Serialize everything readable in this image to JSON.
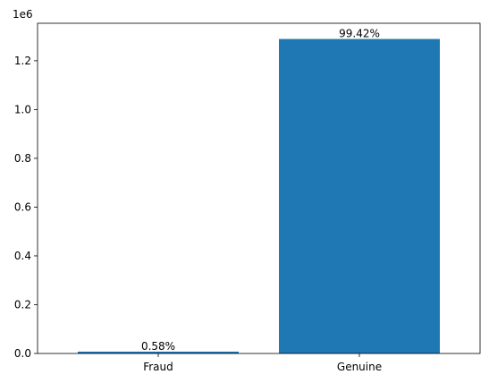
{
  "chart_data": {
    "type": "bar",
    "categories": [
      "Fraud",
      "Genuine"
    ],
    "values": [
      7500,
      1289169
    ],
    "data_labels": [
      "0.58%",
      "99.42%"
    ],
    "title": "",
    "xlabel": "",
    "ylabel": "",
    "y_scale_label": "1e6",
    "y_scale_factor": 1000000,
    "y_ticks": [
      0.0,
      0.2,
      0.4,
      0.6,
      0.8,
      1.0,
      1.2
    ],
    "y_tick_labels": [
      "0.0",
      "0.2",
      "0.4",
      "0.6",
      "0.8",
      "1.0",
      "1.2"
    ],
    "ylim": [
      0,
      1353627
    ],
    "bar_color": "#1f77b4",
    "grid": false,
    "legend": "none"
  }
}
